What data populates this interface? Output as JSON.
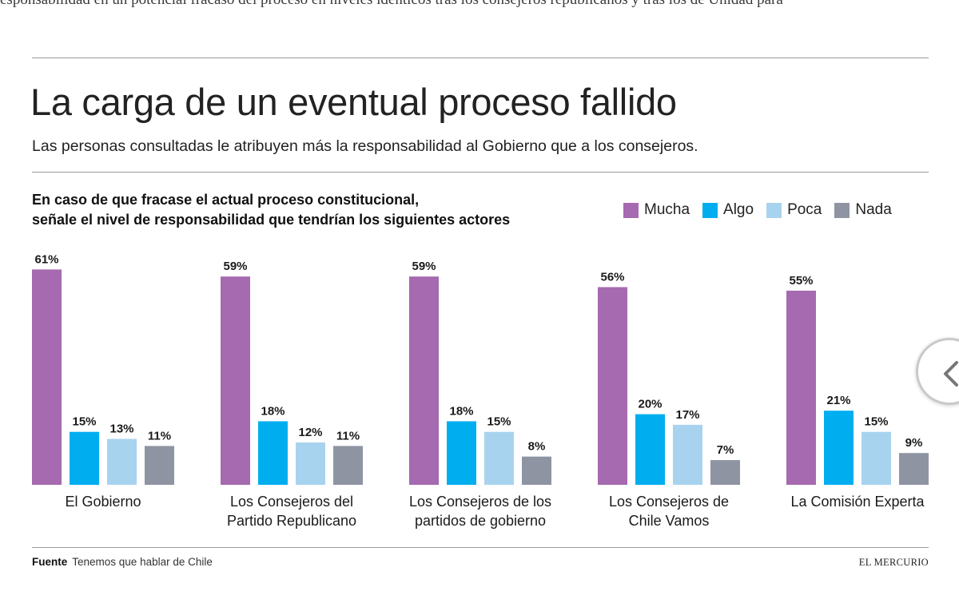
{
  "article": {
    "top_text": "esponsabilidad en un potencial fracaso del proceso en niveles idénticos tras los consejeros republicanos y tras los de Unidad para"
  },
  "header": {
    "title": "La carga de un eventual proceso fallido",
    "subtitle": "Las personas consultadas le atribuyen más la responsabilidad al Gobierno que a los consejeros."
  },
  "question": {
    "line1": "En caso de que fracase el actual proceso constitucional,",
    "line2": "señale el nivel de responsabilidad que tendrían los siguientes actores"
  },
  "legend": [
    {
      "label": "Mucha",
      "color": "#a56aaf"
    },
    {
      "label": "Algo",
      "color": "#00aeef"
    },
    {
      "label": "Poca",
      "color": "#a8d3ef"
    },
    {
      "label": "Nada",
      "color": "#8e94a2"
    }
  ],
  "footer": {
    "source_label": "Fuente",
    "source_text": "Tenemos que hablar de Chile",
    "brand": "EL MERCURIO"
  },
  "nav": {
    "icon": "chevron-left-icon"
  },
  "chart_data": {
    "type": "bar",
    "title": "La carga de un eventual proceso fallido",
    "subtitle": "Las personas consultadas le atribuyen más la responsabilidad al Gobierno que a los consejeros.",
    "xlabel": "",
    "ylabel": "",
    "ylim": [
      0,
      65
    ],
    "grid": false,
    "legend_position": "top-right",
    "categories": [
      [
        "El Gobierno"
      ],
      [
        "Los Consejeros del",
        "Partido Republicano"
      ],
      [
        "Los Consejeros de los",
        "partidos de gobierno"
      ],
      [
        "Los Consejeros de",
        "Chile Vamos"
      ],
      [
        "La Comisión Experta"
      ]
    ],
    "series": [
      {
        "name": "Mucha",
        "color": "#a56aaf",
        "values": [
          61,
          59,
          59,
          56,
          55
        ]
      },
      {
        "name": "Algo",
        "color": "#00aeef",
        "values": [
          15,
          18,
          18,
          20,
          21
        ]
      },
      {
        "name": "Poca",
        "color": "#a8d3ef",
        "values": [
          13,
          12,
          15,
          17,
          15
        ]
      },
      {
        "name": "Nada",
        "color": "#8e94a2",
        "values": [
          11,
          11,
          8,
          7,
          9
        ]
      }
    ],
    "value_suffix": "%"
  }
}
